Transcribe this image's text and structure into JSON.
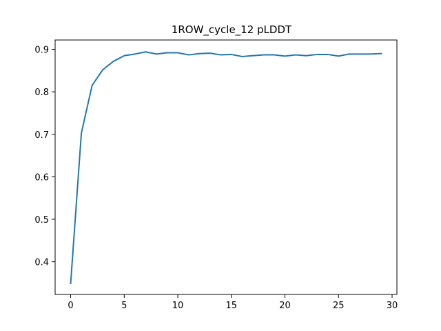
{
  "chart_data": {
    "type": "line",
    "title": "1ROW_cycle_12 pLDDT",
    "xlabel": "",
    "ylabel": "",
    "xlim": [
      -1.45,
      30.45
    ],
    "ylim": [
      0.323,
      0.922
    ],
    "xticks": [
      0,
      5,
      10,
      15,
      20,
      25,
      30
    ],
    "xtick_labels": [
      "0",
      "5",
      "10",
      "15",
      "20",
      "25",
      "30"
    ],
    "yticks": [
      0.4,
      0.5,
      0.6,
      0.7,
      0.8,
      0.9
    ],
    "ytick_labels": [
      "0.4",
      "0.5",
      "0.6",
      "0.7",
      "0.8",
      "0.9"
    ],
    "grid": false,
    "line_color": "#1f77b4",
    "series": [
      {
        "x": [
          0,
          1,
          2,
          3,
          4,
          5,
          6,
          7,
          8,
          9,
          10,
          11,
          12,
          13,
          14,
          15,
          16,
          17,
          18,
          19,
          20,
          21,
          22,
          23,
          24,
          25,
          26,
          27,
          28,
          29
        ],
        "values": [
          0.349,
          0.703,
          0.815,
          0.852,
          0.872,
          0.885,
          0.889,
          0.894,
          0.889,
          0.892,
          0.892,
          0.887,
          0.89,
          0.891,
          0.887,
          0.888,
          0.883,
          0.885,
          0.887,
          0.887,
          0.884,
          0.887,
          0.885,
          0.888,
          0.888,
          0.884,
          0.889,
          0.889,
          0.889,
          0.89
        ]
      }
    ]
  }
}
